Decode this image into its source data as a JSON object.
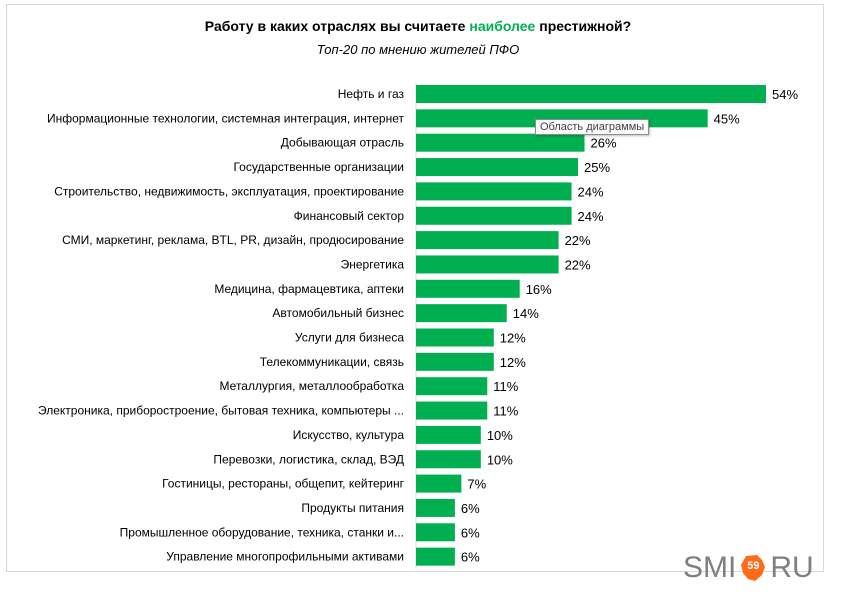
{
  "title": {
    "before": "Работу в каких отраслях вы считаете ",
    "highlight": "наиболее",
    "after": " престижной?"
  },
  "subtitle": "Топ-20 по мнению жителей ПФО",
  "tooltip": "Область диаграммы",
  "logo": {
    "left": "SMI",
    "badge": "59",
    "right": "RU"
  },
  "colors": {
    "bar": "#00b050",
    "highlight": "#00b050",
    "logo_badge": "#ff6b1a"
  },
  "chart_data": {
    "type": "bar",
    "orientation": "horizontal",
    "title": "Работу в каких отраслях вы считаете наиболее престижной?",
    "subtitle": "Топ-20 по мнению жителей ПФО",
    "categories": [
      "Нефть и газ",
      "Информационные технологии, системная интеграция, интернет",
      "Добывающая отрасль",
      "Государственные организации",
      "Строительство, недвижимость, эксплуатация, проектирование",
      "Финансовый сектор",
      "СМИ, маркетинг, реклама, BTL, PR, дизайн, продюсирование",
      "Энергетика",
      "Медицина, фармацевтика, аптеки",
      "Автомобильный бизнес",
      "Услуги для бизнеса",
      "Телекоммуникации, связь",
      "Металлургия, металлообработка",
      "Электроника, приборостроение, бытовая техника, компьютеры ...",
      "Искусство, культура",
      "Перевозки, логистика, склад, ВЭД",
      "Гостиницы, рестораны, общепит, кейтеринг",
      "Продукты питания",
      "Промышленное оборудование, техника, станки и...",
      "Управление многопрофильными активами"
    ],
    "values": [
      54,
      45,
      26,
      25,
      24,
      24,
      22,
      22,
      16,
      14,
      12,
      12,
      11,
      11,
      10,
      10,
      7,
      6,
      6,
      6
    ],
    "value_labels": [
      "54%",
      "45%",
      "26%",
      "25%",
      "24%",
      "24%",
      "22%",
      "22%",
      "16%",
      "14%",
      "12%",
      "12%",
      "11%",
      "11%",
      "10%",
      "10%",
      "7%",
      "6%",
      "6%",
      "6%"
    ],
    "unit": "%",
    "xlim": [
      0,
      54
    ],
    "grid": false,
    "legend": "none"
  }
}
